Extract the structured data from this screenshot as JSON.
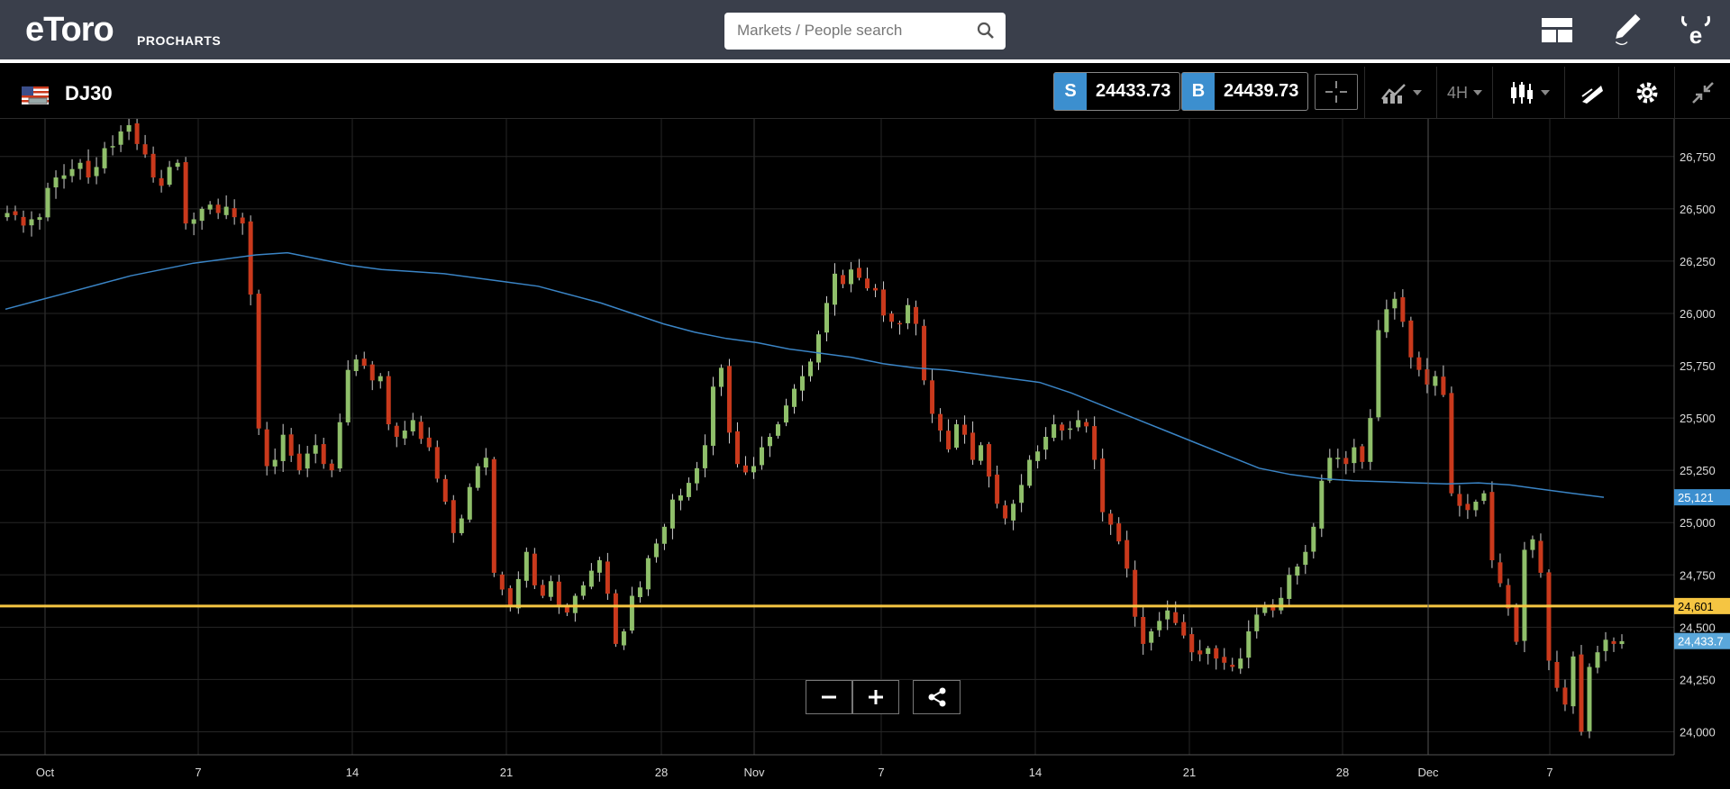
{
  "header": {
    "logo_text": "eToro",
    "logo_sub": "PROCHARTS",
    "search_placeholder": "Markets / People search",
    "icons": [
      "layout-icon",
      "pen-icon",
      "etoro-e-icon"
    ]
  },
  "instrument": {
    "symbol": "DJ30",
    "flag": "us-flag-icon",
    "sell_tag": "S",
    "sell_price": "24433.73",
    "buy_tag": "B",
    "buy_price": "24439.73"
  },
  "toolbar": {
    "timeframe": "4H",
    "icons": [
      "crosshair-icon",
      "indicators-icon",
      "candles-icon",
      "draw-icon",
      "gear-icon",
      "collapse-icon"
    ]
  },
  "colors": {
    "up": "#8fbf6a",
    "down": "#c9391c",
    "ma": "#3a84c5",
    "level": "#f5c542",
    "tag_blue": "#3c8fcf"
  },
  "chart_data": {
    "type": "candlestick",
    "ylim": [
      23890,
      26930
    ],
    "y_ticks": [
      "26,750",
      "26,500",
      "26,250",
      "26,000",
      "25,750",
      "25,500",
      "25,250",
      "25,000",
      "24,750",
      "24,500",
      "24,250",
      "24,000"
    ],
    "y_tick_values": [
      26750,
      26500,
      26250,
      26000,
      25750,
      25500,
      25250,
      25000,
      24750,
      24500,
      24250,
      24000
    ],
    "x_ticks": [
      "Oct",
      "7",
      "14",
      "21",
      "28",
      "Nov",
      "7",
      "14",
      "21",
      "28",
      "Dec",
      "7"
    ],
    "horizontal_line": {
      "value": 24601,
      "label": "24,601"
    },
    "ma_last": {
      "value": 25121,
      "label": "25,121"
    },
    "last_price": {
      "value": 24433.73,
      "label": "24,433.7"
    },
    "closes": [
      26480,
      26470,
      26420,
      26450,
      26460,
      26600,
      26650,
      26660,
      26690,
      26720,
      26650,
      26700,
      26790,
      26800,
      26870,
      26900,
      26810,
      26760,
      26650,
      26610,
      26700,
      26720,
      26430,
      26450,
      26500,
      26520,
      26480,
      26510,
      26460,
      26430,
      26090,
      25450,
      25270,
      25300,
      25420,
      25320,
      25250,
      25330,
      25370,
      25280,
      25250,
      25480,
      25730,
      25780,
      25750,
      25680,
      25700,
      25470,
      25410,
      25440,
      25490,
      25400,
      25360,
      25210,
      25100,
      24950,
      25020,
      25170,
      25270,
      25310,
      24760,
      24680,
      24600,
      24730,
      24860,
      24700,
      24650,
      24720,
      24600,
      24570,
      24650,
      24700,
      24770,
      24820,
      24660,
      24420,
      24480,
      24650,
      24690,
      24830,
      24900,
      24980,
      25110,
      25130,
      25190,
      25260,
      25370,
      25650,
      25740,
      25430,
      25280,
      25240,
      25270,
      25360,
      25410,
      25470,
      25560,
      25640,
      25700,
      25770,
      25900,
      26050,
      26190,
      26140,
      26210,
      26170,
      26120,
      26110,
      25990,
      25960,
      25950,
      26040,
      25950,
      25680,
      25520,
      25440,
      25350,
      25470,
      25420,
      25300,
      25370,
      25220,
      25090,
      25020,
      25090,
      25180,
      25300,
      25340,
      25410,
      25470,
      25440,
      25450,
      25490,
      25460,
      25300,
      25050,
      24990,
      24910,
      24780,
      24550,
      24420,
      24480,
      24530,
      24580,
      24520,
      24460,
      24380,
      24370,
      24400,
      24350,
      24330,
      24310,
      24350,
      24480,
      24560,
      24600,
      24580,
      24640,
      24750,
      24790,
      24860,
      24980,
      25200,
      25310,
      25310,
      25280,
      25360,
      25290,
      25500,
      25920,
      26020,
      26070,
      25960,
      25790,
      25730,
      25660,
      25700,
      25610,
      25140,
      25080,
      25060,
      25100,
      25140,
      24820,
      24710,
      24590,
      24430,
      24870,
      24920,
      24760,
      24340,
      24210,
      24130,
      24360,
      24000,
      24310,
      24380,
      24440,
      24420,
      24433
    ],
    "ma_series": [
      26020,
      26060,
      26100,
      26140,
      26180,
      26210,
      26240,
      26260,
      26280,
      26290,
      26260,
      26230,
      26210,
      26200,
      26190,
      26170,
      26150,
      26130,
      26090,
      26050,
      26000,
      25950,
      25910,
      25880,
      25860,
      25830,
      25810,
      25790,
      25760,
      25740,
      25730,
      25710,
      25690,
      25670,
      25620,
      25560,
      25500,
      25440,
      25380,
      25320,
      25260,
      25230,
      25210,
      25200,
      25195,
      25190,
      25185,
      25190,
      25180,
      25160,
      25140,
      25121
    ]
  }
}
